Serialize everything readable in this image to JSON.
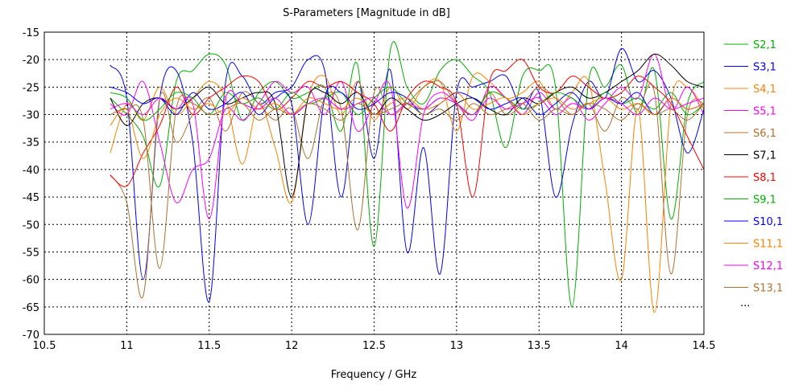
{
  "chart_data": {
    "type": "line",
    "title": "S-Parameters [Magnitude in dB]",
    "xlabel": "Frequency / GHz",
    "ylabel": "",
    "xlim": [
      10.5,
      14.5
    ],
    "ylim": [
      -70,
      -15
    ],
    "x_ticks": [
      "10.5",
      "11",
      "11.5",
      "12",
      "12.5",
      "13",
      "13.5",
      "14",
      "14.5"
    ],
    "y_ticks": [
      "-15",
      "-20",
      "-25",
      "-30",
      "-35",
      "-40",
      "-45",
      "-50",
      "-55",
      "-60",
      "-65",
      "-70"
    ],
    "grid": "dotted",
    "legend_position": "right",
    "legend_more": "...",
    "x": [
      10.9,
      11.0,
      11.1,
      11.2,
      11.3,
      11.4,
      11.5,
      11.6,
      11.7,
      11.8,
      11.9,
      12.0,
      12.1,
      12.2,
      12.3,
      12.4,
      12.5,
      12.6,
      12.7,
      12.8,
      12.9,
      13.0,
      13.1,
      13.2,
      13.3,
      13.4,
      13.5,
      13.6,
      13.7,
      13.8,
      13.9,
      14.0,
      14.1,
      14.2,
      14.3,
      14.4,
      14.5
    ],
    "series": [
      {
        "name": "S2,1",
        "color": "#00b000",
        "values": [
          -27,
          -30,
          -34,
          -43,
          -24,
          -22,
          -19,
          -21,
          -31,
          -26,
          -24,
          -27,
          -26,
          -25,
          -33,
          -21,
          -54,
          -18,
          -25,
          -28,
          -22,
          -20,
          -23,
          -26,
          -36,
          -23,
          -22,
          -25,
          -65,
          -24,
          -25,
          -21,
          -30,
          -22,
          -49,
          -28,
          -24
        ]
      },
      {
        "name": "S3,1",
        "color": "#0000ff",
        "values": [
          -21,
          -27,
          -60,
          -27,
          -22,
          -35,
          -64,
          -24,
          -23,
          -28,
          -26,
          -25,
          -20,
          -22,
          -45,
          -24,
          -38,
          -22,
          -55,
          -36,
          -59,
          -26,
          -25,
          -24,
          -23,
          -29,
          -26,
          -45,
          -32,
          -24,
          -27,
          -18,
          -24,
          -22,
          -27,
          -37,
          -29
        ]
      },
      {
        "name": "S4,1",
        "color": "#ff8000",
        "values": [
          -37,
          -28,
          -31,
          -25,
          -30,
          -27,
          -24,
          -27,
          -39,
          -28,
          -36,
          -46,
          -27,
          -23,
          -30,
          -24,
          -31,
          -25,
          -29,
          -25,
          -24,
          -33,
          -23,
          -24,
          -27,
          -26,
          -24,
          -29,
          -26,
          -24,
          -42,
          -60,
          -29,
          -66,
          -28,
          -25,
          -29
        ]
      },
      {
        "name": "S5,1",
        "color": "#ff00ff",
        "values": [
          -28,
          -30,
          -24,
          -35,
          -46,
          -40,
          -38,
          -29,
          -31,
          -28,
          -24,
          -26,
          -25,
          -30,
          -24,
          -33,
          -28,
          -25,
          -47,
          -30,
          -26,
          -28,
          -31,
          -25,
          -27,
          -30,
          -26,
          -29,
          -27,
          -31,
          -28,
          -25,
          -27,
          -19,
          -29,
          -25,
          -30
        ]
      },
      {
        "name": "S6,1",
        "color": "#b07030",
        "values": [
          -41,
          -46,
          -63,
          -27,
          -35,
          -30,
          -27,
          -33,
          -26,
          -28,
          -31,
          -29,
          -38,
          -27,
          -29,
          -51,
          -26,
          -30,
          -28,
          -25,
          -24,
          -28,
          -30,
          -26,
          -30,
          -28,
          -25,
          -27,
          -30,
          -28,
          -33,
          -27,
          -29,
          -26,
          -59,
          -30,
          -28
        ]
      },
      {
        "name": "S7,1",
        "color": "#000000",
        "values": [
          -27,
          -32,
          -28,
          -27,
          -29,
          -27,
          -25,
          -28,
          -27,
          -26,
          -28,
          -45,
          -27,
          -26,
          -28,
          -26,
          -30,
          -27,
          -29,
          -31,
          -30,
          -28,
          -27,
          -29,
          -30,
          -27,
          -28,
          -26,
          -25,
          -27,
          -26,
          -24,
          -22,
          -19,
          -21,
          -24,
          -25
        ]
      },
      {
        "name": "S8,1",
        "color": "#ff0000",
        "values": [
          -41,
          -43,
          -37,
          -32,
          -25,
          -30,
          -27,
          -25,
          -23,
          -24,
          -29,
          -27,
          -24,
          -25,
          -24,
          -26,
          -28,
          -33,
          -27,
          -24,
          -25,
          -28,
          -45,
          -24,
          -22,
          -20,
          -25,
          -26,
          -23,
          -25,
          -27,
          -26,
          -23,
          -25,
          -28,
          -34,
          -40
        ]
      },
      {
        "name": "S9,1",
        "color": "#00b000",
        "values": [
          -26,
          -27,
          -31,
          -29,
          -26,
          -27,
          -30,
          -26,
          -28,
          -27,
          -29,
          -26,
          -28,
          -27,
          -26,
          -30,
          -27,
          -25,
          -28,
          -29,
          -27,
          -28,
          -30,
          -26,
          -27,
          -29,
          -28,
          -26,
          -27,
          -29,
          -26,
          -28,
          -27,
          -29,
          -26,
          -30,
          -28
        ]
      },
      {
        "name": "S10,1",
        "color": "#0000ff",
        "values": [
          -25,
          -26,
          -28,
          -27,
          -30,
          -26,
          -29,
          -28,
          -26,
          -30,
          -27,
          -28,
          -50,
          -27,
          -26,
          -29,
          -28,
          -26,
          -27,
          -30,
          -28,
          -26,
          -27,
          -29,
          -28,
          -27,
          -30,
          -28,
          -26,
          -29,
          -27,
          -28,
          -26,
          -30,
          -27,
          -29,
          -28
        ]
      },
      {
        "name": "S11,1",
        "color": "#ff8000",
        "values": [
          -32,
          -29,
          -38,
          -30,
          -27,
          -29,
          -28,
          -30,
          -27,
          -29,
          -28,
          -30,
          -27,
          -28,
          -29,
          -27,
          -30,
          -28,
          -27,
          -29,
          -28,
          -26,
          -29,
          -28,
          -27,
          -30,
          -28,
          -27,
          -29,
          -28,
          -27,
          -29,
          -28,
          -30,
          -27,
          -29,
          -28
        ]
      },
      {
        "name": "S12,1",
        "color": "#ff00ff",
        "values": [
          -29,
          -28,
          -30,
          -27,
          -29,
          -28,
          -49,
          -27,
          -28,
          -29,
          -27,
          -30,
          -28,
          -27,
          -29,
          -28,
          -27,
          -30,
          -28,
          -29,
          -27,
          -28,
          -30,
          -27,
          -29,
          -28,
          -27,
          -30,
          -28,
          -29,
          -27,
          -28,
          -30,
          -27,
          -29,
          -28,
          -27
        ]
      },
      {
        "name": "S13,1",
        "color": "#b07030",
        "values": [
          -30,
          -29,
          -31,
          -58,
          -29,
          -28,
          -30,
          -29,
          -28,
          -31,
          -29,
          -30,
          -28,
          -29,
          -31,
          -28,
          -30,
          -29,
          -28,
          -30,
          -29,
          -31,
          -28,
          -30,
          -29,
          -28,
          -31,
          -29,
          -30,
          -28,
          -29,
          -31,
          -28,
          -30,
          -29,
          -31,
          -28
        ]
      }
    ]
  }
}
